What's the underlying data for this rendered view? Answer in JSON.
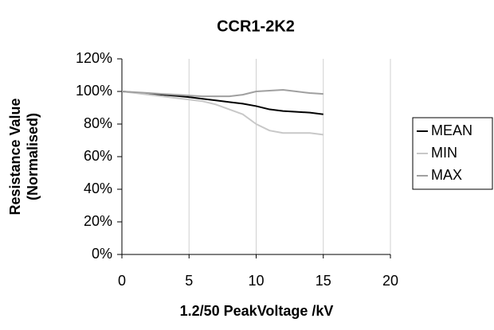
{
  "chart_data": {
    "type": "line",
    "title": "CCR1-2K2",
    "x_label": "1.2/50 PeakVoltage /kV",
    "y_label": [
      "Resistance Value",
      "(Normalised)"
    ],
    "x": [
      0,
      1,
      2,
      3,
      4,
      5,
      6,
      7,
      8,
      9,
      10,
      11,
      12,
      13,
      14,
      15
    ],
    "series": [
      {
        "name": "MEAN",
        "color": "#000000",
        "values": [
          100,
          99.3,
          98.6,
          98,
          97.3,
          96.5,
          95.5,
          94.5,
          93.5,
          92.5,
          91,
          89,
          88,
          87.5,
          87,
          86
        ]
      },
      {
        "name": "MIN",
        "color": "#c8c8c8",
        "values": [
          100,
          99,
          98,
          97,
          96,
          95,
          94,
          92,
          89,
          86,
          80,
          76,
          74.5,
          74.5,
          74.5,
          73.5
        ]
      },
      {
        "name": "MAX",
        "color": "#a0a0a0",
        "values": [
          100,
          99.5,
          99,
          98.5,
          98,
          97.5,
          97,
          97,
          97,
          98,
          100,
          100.5,
          101,
          100,
          99,
          98.5
        ]
      }
    ],
    "xlim": [
      0,
      20
    ],
    "xticks": [
      0,
      5,
      10,
      15,
      20
    ],
    "ylim": [
      0,
      120
    ],
    "yticks": [
      {
        "value": 0,
        "label": "0%"
      },
      {
        "value": 20,
        "label": "20%"
      },
      {
        "value": 40,
        "label": "40%"
      },
      {
        "value": 60,
        "label": "60%"
      },
      {
        "value": 80,
        "label": "80%"
      },
      {
        "value": 100,
        "label": "100%"
      },
      {
        "value": 120,
        "label": "120%"
      }
    ],
    "grid": "x",
    "legend": "right"
  }
}
